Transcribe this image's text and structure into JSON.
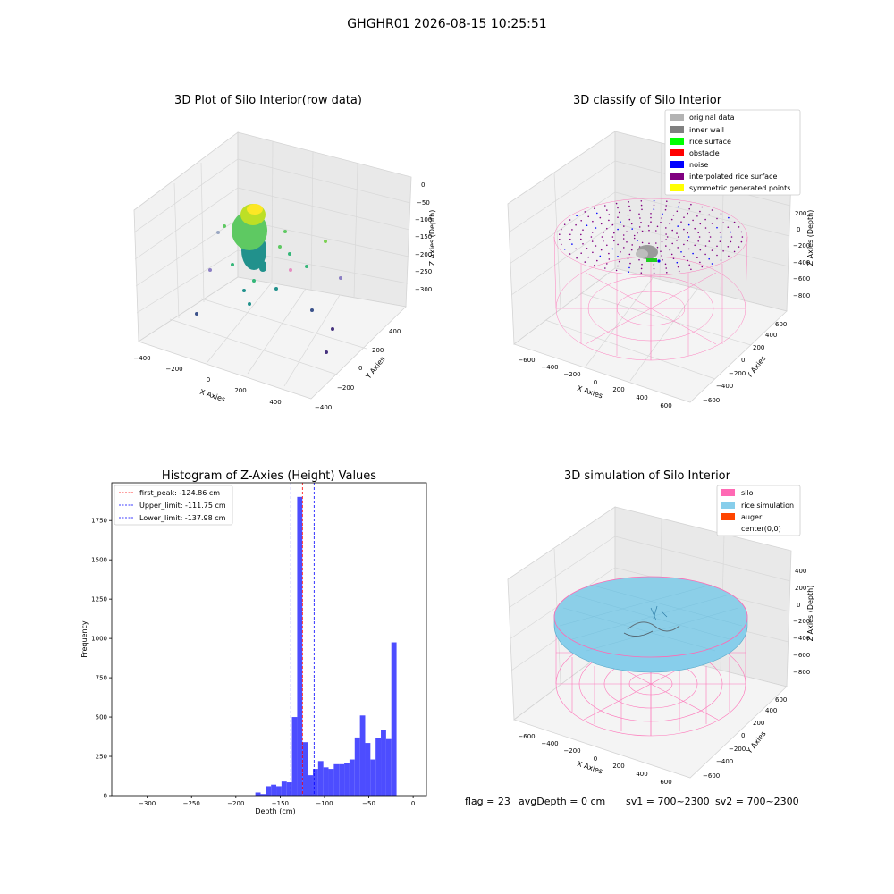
{
  "suptitle": "GHGHR01 2026-08-15 10:25:51",
  "status": {
    "flag": "flag = 23",
    "avg_depth": "avgDepth = 0 cm",
    "sv1": "sv1 = 700~2300",
    "sv2": "sv2 = 700~2300"
  },
  "colors": {
    "hist_bar": "#4d4dff",
    "first_peak": "#ff0000",
    "limits": "#0000ff",
    "silo_wire": "#ff69b4",
    "rice_surface": "#87ceeb",
    "pane": "#f2f2f2",
    "grid": "#dcdcdc"
  },
  "chart_data": [
    {
      "type": "scatter",
      "title": "3D Plot of Silo Interior(row data)",
      "xlabel": "X Axies",
      "ylabel": "Y Axies",
      "zlabel": "Z Axies (Depth)",
      "x_ticks": [
        "−400",
        "−200",
        "0",
        "200",
        "400"
      ],
      "y_ticks": [
        "−400",
        "−200",
        "0",
        "200",
        "400"
      ],
      "z_ticks": [
        "0",
        "−50",
        "−100",
        "−150",
        "−200",
        "−250",
        "−300"
      ],
      "colormap": "viridis",
      "cluster": {
        "x": [
          -120,
          60
        ],
        "y": [
          -60,
          60
        ],
        "z": [
          -210,
          -100
        ]
      },
      "outliers": [
        {
          "x": 420,
          "y": -300,
          "z": -320
        },
        {
          "x": 400,
          "y": -150,
          "z": -300
        },
        {
          "x": 350,
          "y": 80,
          "z": -270
        },
        {
          "x": -300,
          "y": -50,
          "z": -300
        },
        {
          "x": 250,
          "y": 150,
          "z": -200
        }
      ]
    },
    {
      "type": "scatter",
      "title": "3D classify of Silo Interior",
      "xlabel": "X Axies",
      "ylabel": "Y Axies",
      "zlabel": "Z Axies (Depth)",
      "x_ticks": [
        "−600",
        "−400",
        "−200",
        "0",
        "200",
        "400",
        "600"
      ],
      "y_ticks": [
        "−600",
        "−400",
        "−200",
        "0",
        "200",
        "400",
        "600"
      ],
      "z_ticks": [
        "200",
        "0",
        "−200",
        "−400",
        "−600",
        "−800"
      ],
      "legend_position": "top-right",
      "legend": [
        {
          "label": "original data",
          "color": "#b3b3b3"
        },
        {
          "label": "inner wall",
          "color": "#808080"
        },
        {
          "label": "rice surface",
          "color": "#00ff00"
        },
        {
          "label": "obstacle",
          "color": "#ff0000"
        },
        {
          "label": "noise",
          "color": "#0000ff"
        },
        {
          "label": "interpolated rice surface",
          "color": "#800080"
        },
        {
          "label": "symmetric generated points",
          "color": "#ffff00"
        }
      ]
    },
    {
      "type": "bar",
      "title": "Histogram of Z-Axies (Height) Values",
      "xlabel": "Depth (cm)",
      "ylabel": "Frequency",
      "xlim": [
        -340,
        15
      ],
      "ylim": [
        0,
        1990
      ],
      "x_ticks": [
        -300,
        -250,
        -200,
        -150,
        -100,
        -50,
        0
      ],
      "x_tick_labels": [
        "−300",
        "−250",
        "−200",
        "−150",
        "−100",
        "−50",
        "0"
      ],
      "y_ticks": [
        0,
        250,
        500,
        750,
        1000,
        1250,
        1500,
        1750
      ],
      "y_tick_labels": [
        "0",
        "250",
        "500",
        "750",
        "1000",
        "1250",
        "1500",
        "1750"
      ],
      "bin_start": -178,
      "bin_width": 5.9,
      "values": [
        20,
        10,
        60,
        70,
        60,
        90,
        85,
        500,
        1900,
        340,
        130,
        170,
        220,
        180,
        170,
        200,
        200,
        210,
        230,
        370,
        510,
        335,
        230,
        365,
        420,
        360,
        975
      ],
      "vlines": [
        {
          "x": -124.86,
          "color": "#ff0000"
        },
        {
          "x": -111.75,
          "color": "#0000ff"
        },
        {
          "x": -137.98,
          "color": "#0000ff"
        }
      ],
      "legend_position": "top-left",
      "legend": [
        {
          "label": "first_peak: -124.86 cm",
          "color": "#ff0000"
        },
        {
          "label": "Upper_limit: -111.75 cm",
          "color": "#0000ff"
        },
        {
          "label": "Lower_limit: -137.98 cm",
          "color": "#0000ff"
        }
      ]
    },
    {
      "type": "area",
      "title": "3D simulation of Silo Interior",
      "xlabel": "X Axies",
      "ylabel": "Y Axies",
      "zlabel": "Z Axies (Depth)",
      "x_ticks": [
        "−600",
        "−400",
        "−200",
        "0",
        "200",
        "400",
        "600"
      ],
      "y_ticks": [
        "−600",
        "−400",
        "−200",
        "0",
        "200",
        "400",
        "600"
      ],
      "z_ticks": [
        "400",
        "200",
        "0",
        "−200",
        "−400",
        "−600",
        "−800"
      ],
      "legend_position": "top-right",
      "legend": [
        {
          "label": "silo",
          "color": "#ff69b4"
        },
        {
          "label": "rice simulation",
          "color": "#87ceeb"
        },
        {
          "label": "auger",
          "color": "#ff4500"
        },
        {
          "label": "center(0,0)",
          "color": "#ffffff"
        }
      ]
    }
  ]
}
